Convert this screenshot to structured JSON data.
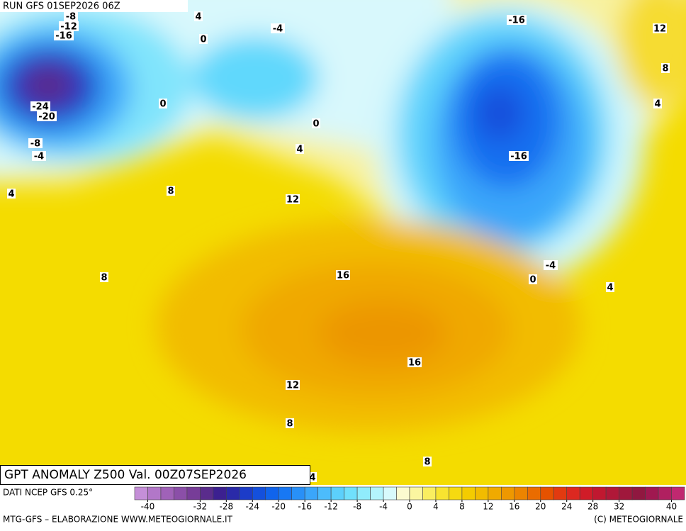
{
  "header": {
    "run": "RUN GFS 01SEP2026 06Z"
  },
  "map": {
    "title": "GPT ANOMALY Z500 Val. 00Z07SEP2026",
    "contour_labels": [
      -8,
      -12,
      -16,
      4,
      0,
      -4,
      -16,
      12,
      8,
      4,
      -24,
      -20,
      0,
      0,
      -8,
      -4,
      4,
      -16,
      4,
      8,
      12,
      -4,
      0,
      4,
      16,
      8,
      16,
      12,
      8,
      8,
      4
    ]
  },
  "colorbar": {
    "lim": [
      -42,
      42
    ],
    "ticks": [
      -40,
      -32,
      -28,
      -24,
      -20,
      -16,
      -12,
      -8,
      -4,
      0,
      4,
      8,
      12,
      16,
      20,
      24,
      28,
      32,
      40
    ],
    "colors": [
      "#c58fd8",
      "#b277c8",
      "#a062b8",
      "#8b4fa8",
      "#773d98",
      "#5a2c8c",
      "#3c2090",
      "#2a2aa8",
      "#1c3cc8",
      "#1450dc",
      "#1064ec",
      "#1878f4",
      "#2890f8",
      "#3aa6fa",
      "#4cbcfc",
      "#5cd0fc",
      "#70e0fc",
      "#90ecfc",
      "#b4f4fc",
      "#d8fafc",
      "#fbfbd0",
      "#fbf6a0",
      "#faee60",
      "#f8e430",
      "#f6da10",
      "#f4cc00",
      "#f2bc00",
      "#f0aa00",
      "#ee9800",
      "#ec8400",
      "#ea6c00",
      "#e65200",
      "#e23a10",
      "#dc2820",
      "#d01c28",
      "#c01830",
      "#b01838",
      "#a0183c",
      "#901840",
      "#a01850",
      "#b02060",
      "#c02870"
    ]
  },
  "footer": {
    "source": "DATI NCEP GFS 0.25°",
    "credit": "MTG-GFS – ELABORAZIONE WWW.METEOGIORNALE.IT",
    "copyright": "(C) METEOGIORNALE"
  }
}
